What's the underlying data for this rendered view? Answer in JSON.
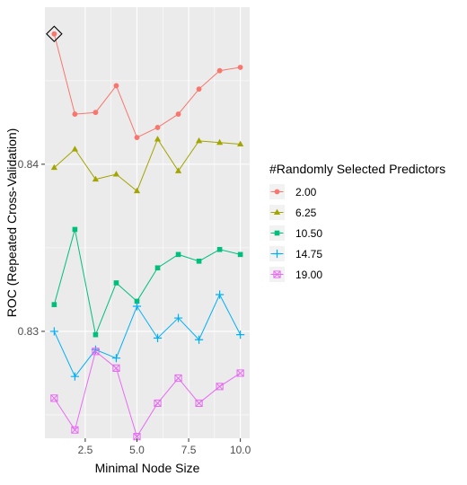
{
  "chart_data": {
    "type": "line",
    "xlabel": "Minimal Node Size",
    "ylabel": "ROC (Repeated Cross-Validation)",
    "x": [
      1,
      2,
      3,
      4,
      5,
      6,
      7,
      8,
      9,
      10
    ],
    "xlim": [
      0.55,
      10.45
    ],
    "ylim": [
      0.8236,
      0.8494
    ],
    "x_ticks": [
      {
        "value": 2.5,
        "label": "2.5"
      },
      {
        "value": 5.0,
        "label": "5.0"
      },
      {
        "value": 7.5,
        "label": "7.5"
      },
      {
        "value": 10.0,
        "label": "10.0"
      }
    ],
    "y_ticks": [
      {
        "value": 0.83,
        "label": "0.83"
      },
      {
        "value": 0.84,
        "label": "0.84"
      }
    ],
    "legend_title": "#Randomly Selected Predictors",
    "legend_position": "right",
    "background": "#EBEBEB",
    "grid": true,
    "series": [
      {
        "name": "2.00",
        "color": "#F8766D",
        "shape": "circle",
        "values": [
          0.8478,
          0.843,
          0.8431,
          0.8447,
          0.8416,
          0.8422,
          0.843,
          0.8445,
          0.8456,
          0.8458
        ]
      },
      {
        "name": "6.25",
        "color": "#A3A500",
        "shape": "triangle",
        "values": [
          0.8398,
          0.8409,
          0.8391,
          0.8394,
          0.8384,
          0.8415,
          0.8396,
          0.8414,
          0.8413,
          0.8412
        ]
      },
      {
        "name": "10.50",
        "color": "#00BF7D",
        "shape": "square",
        "values": [
          0.8316,
          0.8361,
          0.8298,
          0.8329,
          0.8318,
          0.8338,
          0.8346,
          0.8342,
          0.8349,
          0.8346
        ]
      },
      {
        "name": "14.75",
        "color": "#00B0F6",
        "shape": "plus",
        "values": [
          0.83,
          0.8273,
          0.8289,
          0.8284,
          0.8315,
          0.8296,
          0.8308,
          0.8295,
          0.8322,
          0.8298
        ]
      },
      {
        "name": "19.00",
        "color": "#E76BF3",
        "shape": "boxx",
        "values": [
          0.826,
          0.8241,
          0.8288,
          0.8278,
          0.8237,
          0.8257,
          0.8272,
          0.8257,
          0.8267,
          0.8275
        ]
      }
    ],
    "annotations": [
      {
        "type": "diamond-marker",
        "x": 1,
        "y": 0.8478
      }
    ]
  }
}
